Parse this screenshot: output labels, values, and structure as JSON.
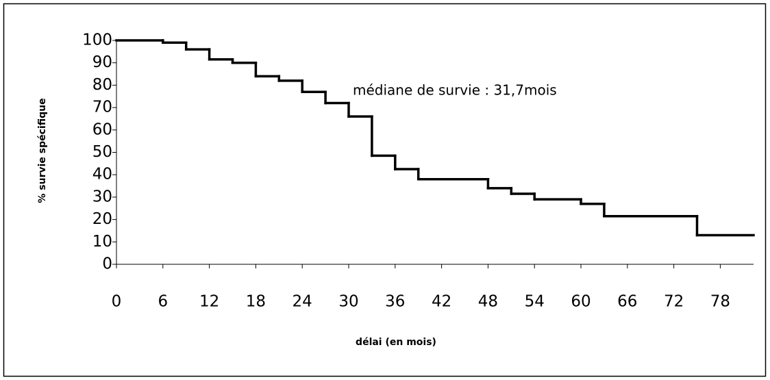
{
  "chart_data": {
    "type": "step",
    "annotation": "médiane de survie : 31,7mois",
    "xlabel": "délai (en mois)",
    "ylabel": "% survie spécifique",
    "x": [
      0,
      6,
      9,
      12,
      15,
      18,
      21,
      24,
      27,
      30,
      33,
      36,
      39,
      48,
      51,
      54,
      60,
      63,
      75
    ],
    "values": [
      100,
      99,
      96,
      91.5,
      90,
      84,
      82,
      77,
      72,
      66,
      48.5,
      42.5,
      38,
      34,
      31.5,
      29,
      27,
      21.5,
      13
    ],
    "color": "#000000",
    "xlim": [
      0,
      82.3
    ],
    "xticks": [
      0,
      6,
      12,
      18,
      24,
      30,
      36,
      42,
      48,
      54,
      60,
      66,
      72,
      78
    ],
    "ylim": [
      0,
      100
    ],
    "yticks": [
      0,
      10,
      20,
      30,
      40,
      50,
      60,
      70,
      80,
      90,
      100
    ]
  }
}
